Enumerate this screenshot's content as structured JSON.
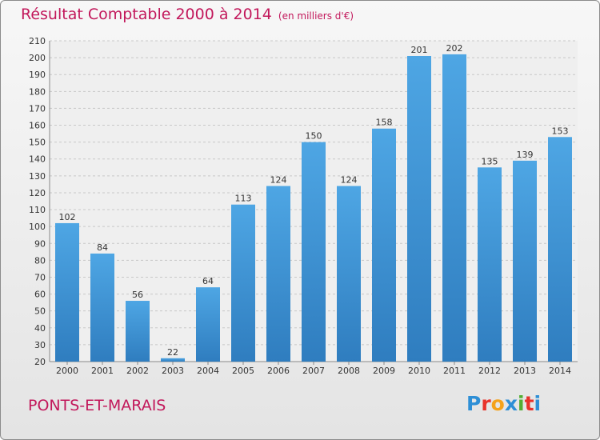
{
  "title": "Résultat Comptable 2000 à 2014",
  "subtitle": "(en milliers d'€)",
  "commune": "PONTS-ET-MARAIS",
  "logo": {
    "letters": [
      "P",
      "r",
      "o",
      "x",
      "i",
      "t",
      "i"
    ],
    "colors": [
      "#2e8fd6",
      "#e8322a",
      "#f4a21b",
      "#2e8fd6",
      "#52ae32",
      "#e8322a",
      "#2e8fd6"
    ]
  },
  "colors": {
    "bar": "#4ea6e4",
    "bar_dark": "#2f7dbf",
    "grid": "#c8c8c8",
    "title": "#c2185b"
  },
  "chart_data": {
    "type": "bar",
    "title": "Résultat Comptable 2000 à 2014",
    "subtitle": "(en milliers d'€)",
    "categories": [
      "2000",
      "2001",
      "2002",
      "2003",
      "2004",
      "2005",
      "2006",
      "2007",
      "2008",
      "2009",
      "2010",
      "2011",
      "2012",
      "2013",
      "2014"
    ],
    "values": [
      102,
      84,
      56,
      22,
      64,
      113,
      124,
      150,
      124,
      158,
      201,
      202,
      135,
      139,
      153
    ],
    "ylim": [
      20,
      210
    ],
    "yticks": [
      20,
      30,
      40,
      50,
      60,
      70,
      80,
      90,
      100,
      110,
      120,
      130,
      140,
      150,
      160,
      170,
      180,
      190,
      200,
      210
    ],
    "grid": true,
    "xlabel": "",
    "ylabel": ""
  }
}
